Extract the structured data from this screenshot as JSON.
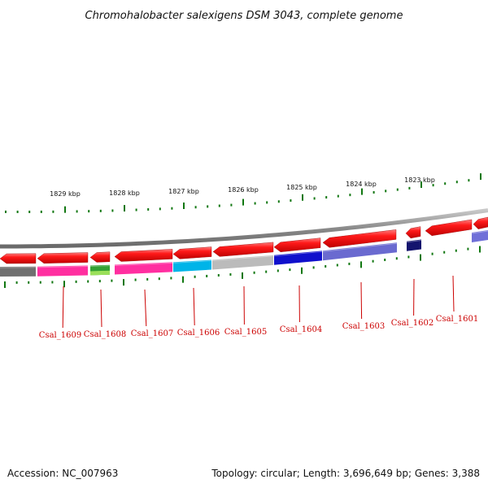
{
  "title": "Chromohalobacter salexigens DSM 3043, complete genome",
  "kbp_ticks": [
    "1829 kbp",
    "1828 kbp",
    "1827 kbp",
    "1826 kbp",
    "1825 kbp",
    "1824 kbp",
    "1823 kbp"
  ],
  "genes": [
    {
      "label": "Csal_1609",
      "strand": "reverse",
      "lower_color": "#ff2fa0"
    },
    {
      "label": "Csal_1608",
      "strand": "reverse",
      "lower_color": "#33a033"
    },
    {
      "label": "Csal_1607",
      "strand": "reverse",
      "lower_color": "#ff2fa0"
    },
    {
      "label": "Csal_1606",
      "strand": "reverse",
      "lower_color": "#00b4e8"
    },
    {
      "label": "Csal_1605",
      "strand": "reverse",
      "lower_color": "#bbbbbb"
    },
    {
      "label": "Csal_1604",
      "strand": "reverse",
      "lower_color": "#1010cc"
    },
    {
      "label": "Csal_1603",
      "strand": "reverse",
      "lower_color": "#6a6ad0"
    },
    {
      "label": "Csal_1602",
      "strand": "reverse",
      "lower_color": "#14146e"
    },
    {
      "label": "Csal_1601",
      "strand": "reverse",
      "lower_color": "#7070d8"
    }
  ],
  "colors": {
    "gene_arrow": "#ee1111",
    "backbone": "#8a8a8a",
    "tick": "#117711",
    "gene_label": "#cc0000"
  },
  "footer": {
    "accession": "Accession: NC_007963",
    "stats": "Topology: circular; Length: 3,696,649 bp; Genes: 3,388"
  }
}
